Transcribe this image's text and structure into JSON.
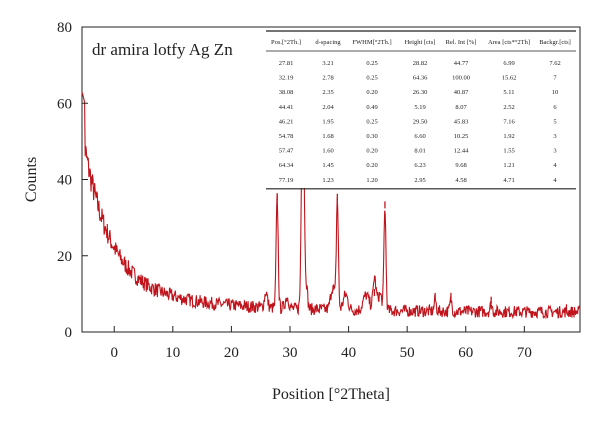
{
  "chart_data": {
    "type": "line",
    "title": "dr amira lotfy Ag Zn",
    "xlabel": "Position [°2Theta]",
    "ylabel": "Counts",
    "xlim": [
      -5.5,
      79.5
    ],
    "ylim": [
      0,
      80
    ],
    "xticks": [
      0,
      10,
      20,
      30,
      40,
      50,
      60,
      70
    ],
    "yticks": [
      0,
      20,
      40,
      60,
      80
    ],
    "grid": false,
    "line_color": "#c0141c",
    "peaks": [
      {
        "x": -5.3,
        "y": 63
      },
      {
        "x": 27.81,
        "y": 36
      },
      {
        "x": 32.19,
        "y": 71
      },
      {
        "x": 38.08,
        "y": 36
      },
      {
        "x": 44.41,
        "y": 11
      },
      {
        "x": 46.21,
        "y": 34
      },
      {
        "x": 54.78,
        "y": 10
      },
      {
        "x": 57.47,
        "y": 10
      },
      {
        "x": 64.34,
        "y": 9
      },
      {
        "x": 77.19,
        "y": 7
      }
    ],
    "peak_table": {
      "columns": [
        "Pos.[°2Th.]",
        "d-spacing",
        "FWHM[°2Th.]",
        "Height [cts]",
        "Rel. Int [%]",
        "Area [cts*°2Th]",
        "Backgr.[cts]"
      ],
      "rows": [
        [
          "27.81",
          "3.21",
          "0.25",
          "28.82",
          "44.77",
          "6.99",
          "7.62"
        ],
        [
          "32.19",
          "2.78",
          "0.25",
          "64.36",
          "100.00",
          "15.62",
          "7"
        ],
        [
          "38.08",
          "2.35",
          "0.20",
          "26.30",
          "40.87",
          "5.11",
          "10"
        ],
        [
          "44.41",
          "2.04",
          "0.49",
          "5.19",
          "8.07",
          "2.52",
          "6"
        ],
        [
          "46.21",
          "1.95",
          "0.25",
          "29.50",
          "45.83",
          "7.16",
          "5"
        ],
        [
          "54.78",
          "1.68",
          "0.30",
          "6.60",
          "10.25",
          "1.92",
          "3"
        ],
        [
          "57.47",
          "1.60",
          "0.20",
          "8.01",
          "12.44",
          "1.55",
          "3"
        ],
        [
          "64.34",
          "1.45",
          "0.20",
          "6.23",
          "9.68",
          "1.21",
          "4"
        ],
        [
          "77.19",
          "1.23",
          "1.20",
          "2.95",
          "4.58",
          "4.71",
          "4"
        ]
      ]
    }
  }
}
